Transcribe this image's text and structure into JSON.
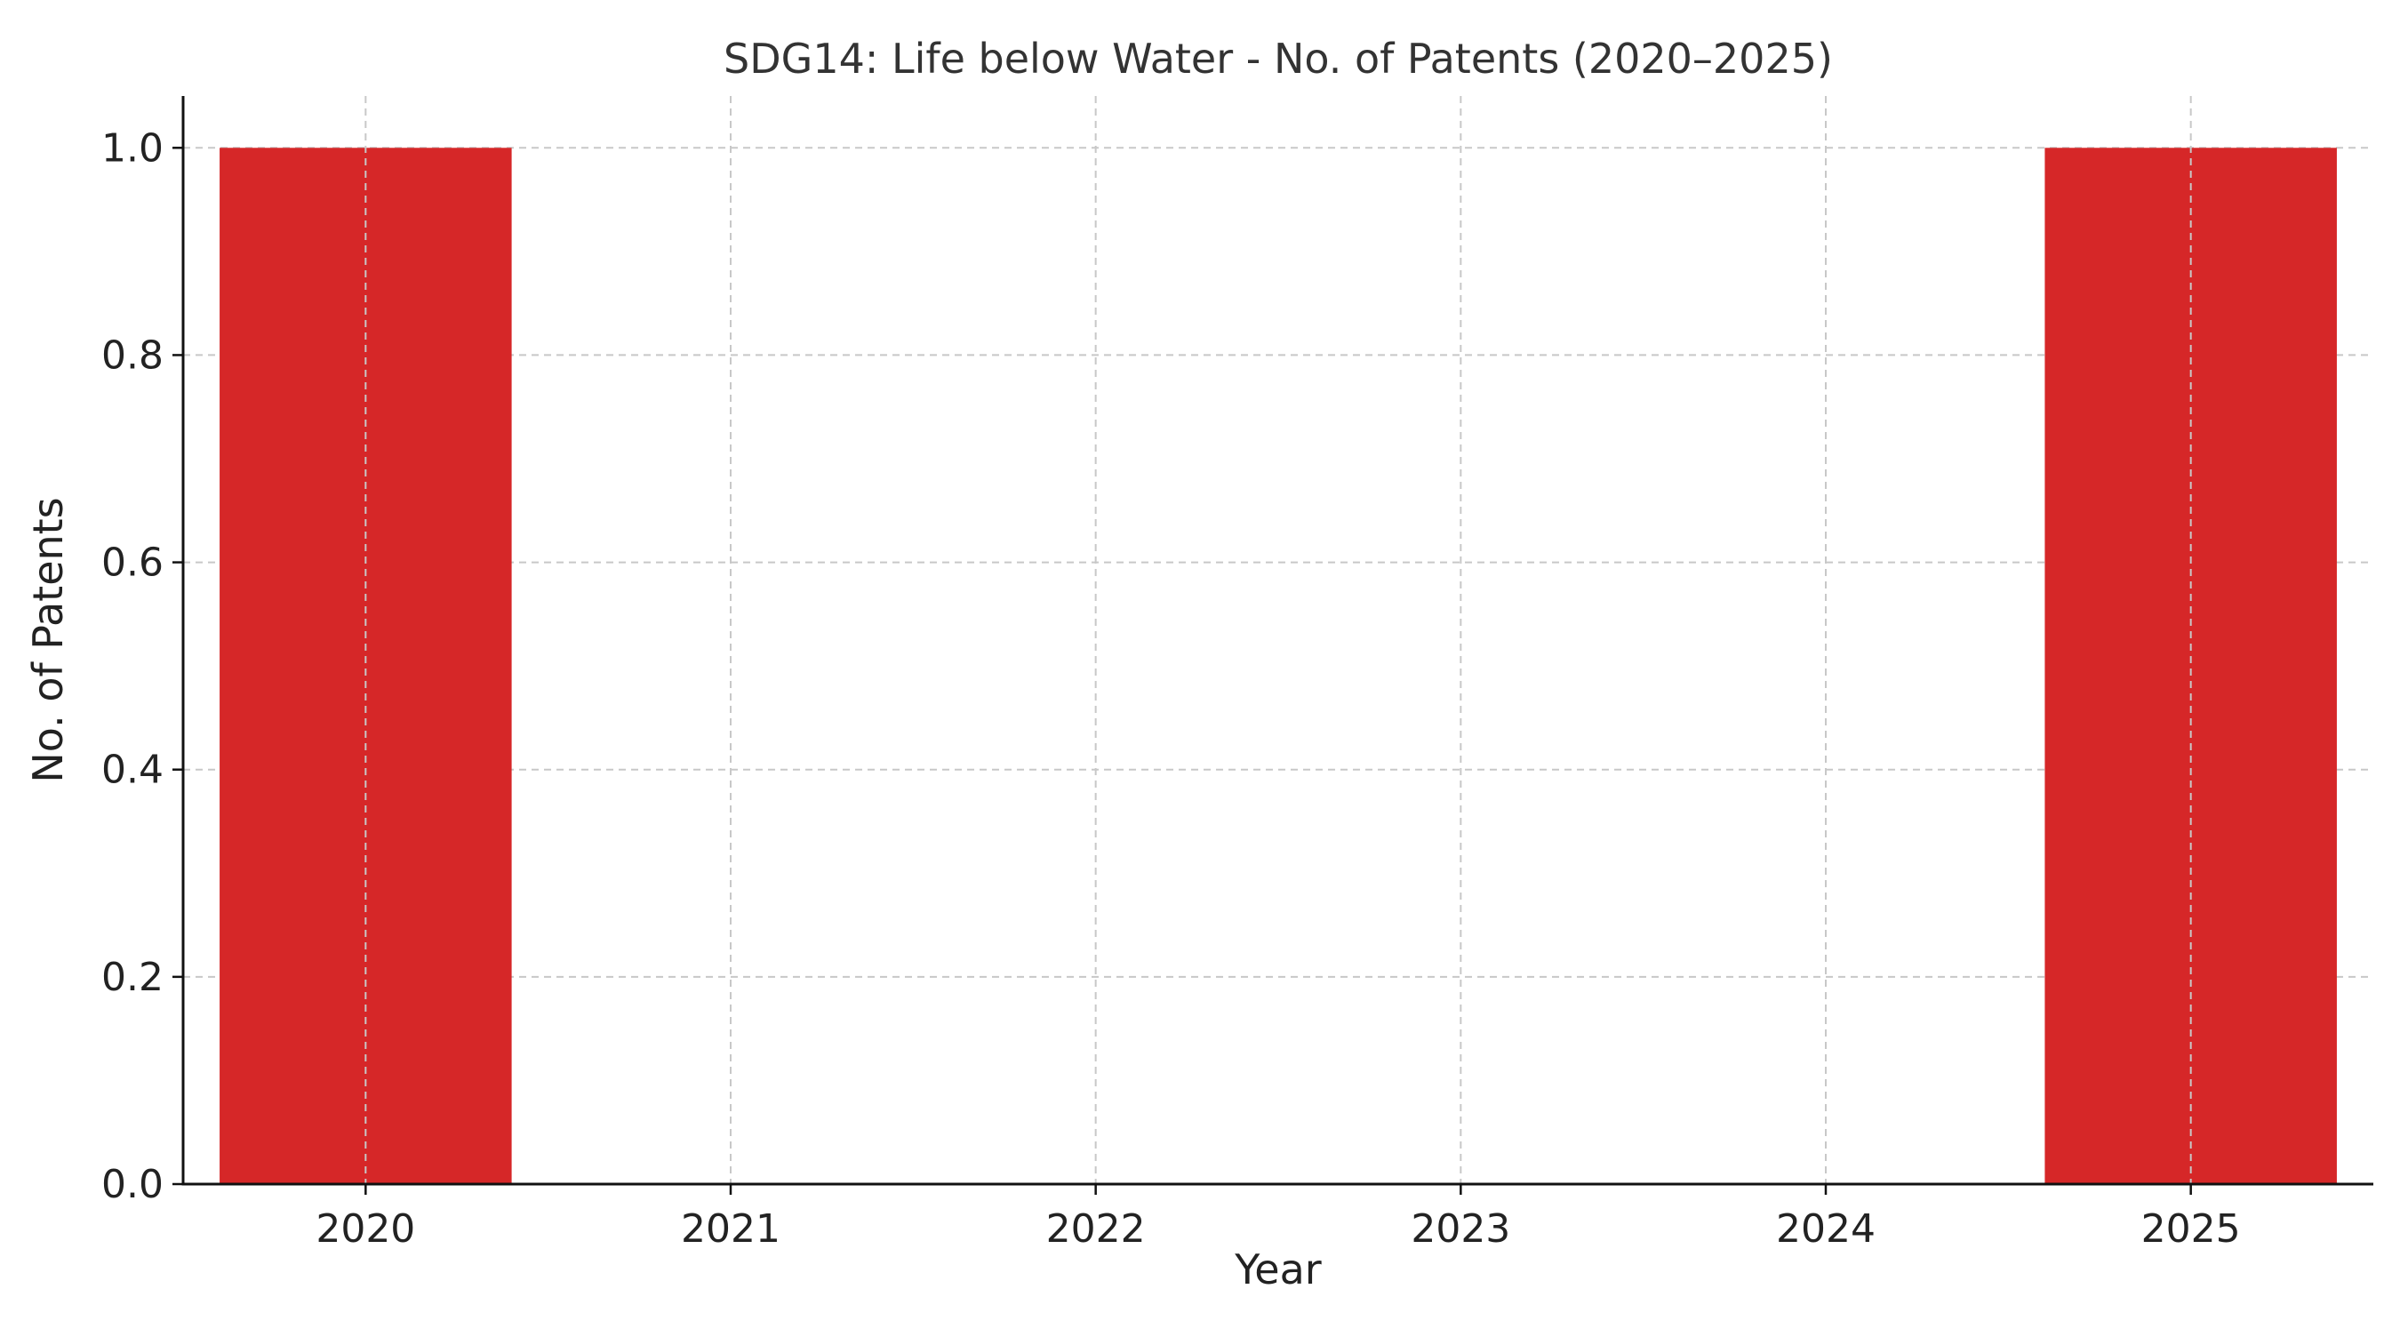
{
  "chart_data": {
    "type": "bar",
    "title": "SDG14: Life below Water - No. of Patents (2020–2025)",
    "xlabel": "Year",
    "ylabel": "No. of Patents",
    "categories": [
      "2020",
      "2021",
      "2022",
      "2023",
      "2024",
      "2025"
    ],
    "values": [
      1,
      0,
      0,
      0,
      0,
      1
    ],
    "ylim": [
      0,
      1.05
    ],
    "yticks": [
      "0.0",
      "0.2",
      "0.4",
      "0.6",
      "0.8",
      "1.0"
    ],
    "grid": true,
    "bar_color": "#d62728"
  }
}
